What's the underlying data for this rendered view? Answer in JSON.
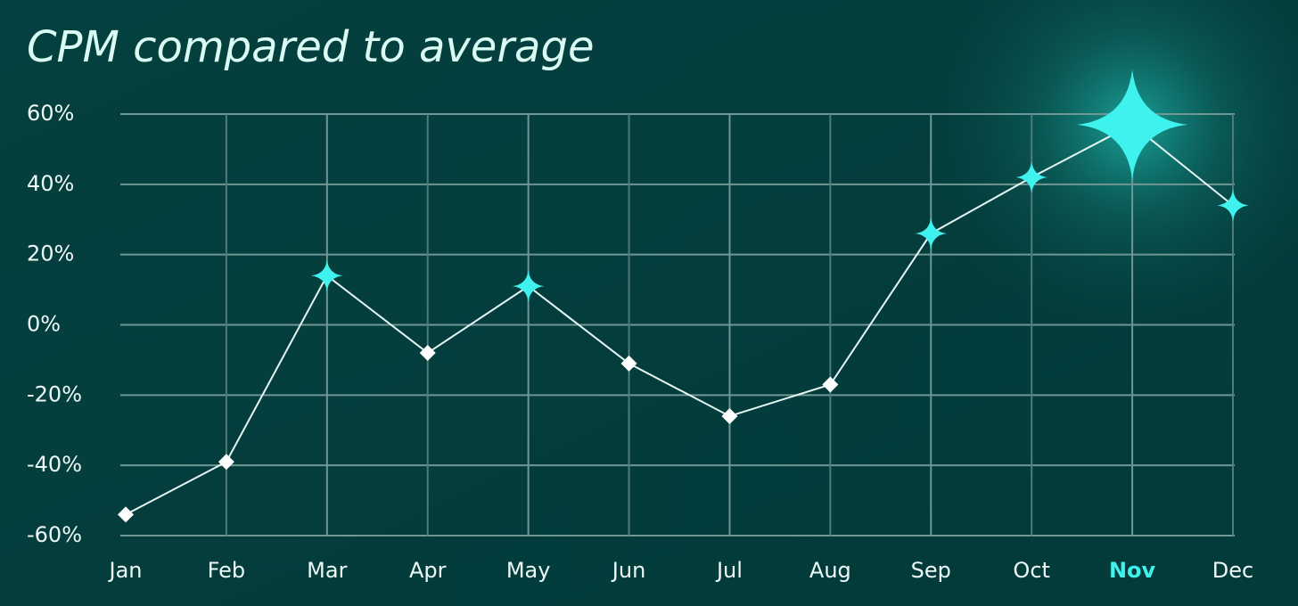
{
  "chart_data": {
    "type": "line",
    "title": "CPM compared to average",
    "categories": [
      "Jan",
      "Feb",
      "Mar",
      "Apr",
      "May",
      "Jun",
      "Jul",
      "Aug",
      "Sep",
      "Oct",
      "Nov",
      "Dec"
    ],
    "values": [
      -54,
      -39,
      14,
      -8,
      11,
      -11,
      -26,
      -17,
      26,
      42,
      57,
      34
    ],
    "color": "#e6f7f4",
    "marker_color": "#3ff2ee",
    "negative_marker_color": "#ffffff",
    "highlight_category": "Nov",
    "ylim": [
      -60,
      60
    ],
    "yticks": [
      {
        "value": 60,
        "label": "60%"
      },
      {
        "value": 40,
        "label": "40%"
      },
      {
        "value": 20,
        "label": "20%"
      },
      {
        "value": 0,
        "label": "0%"
      },
      {
        "value": -20,
        "label": "-20%"
      },
      {
        "value": -40,
        "label": "-40%"
      },
      {
        "value": -60,
        "label": "-60%"
      }
    ],
    "grid": true
  }
}
